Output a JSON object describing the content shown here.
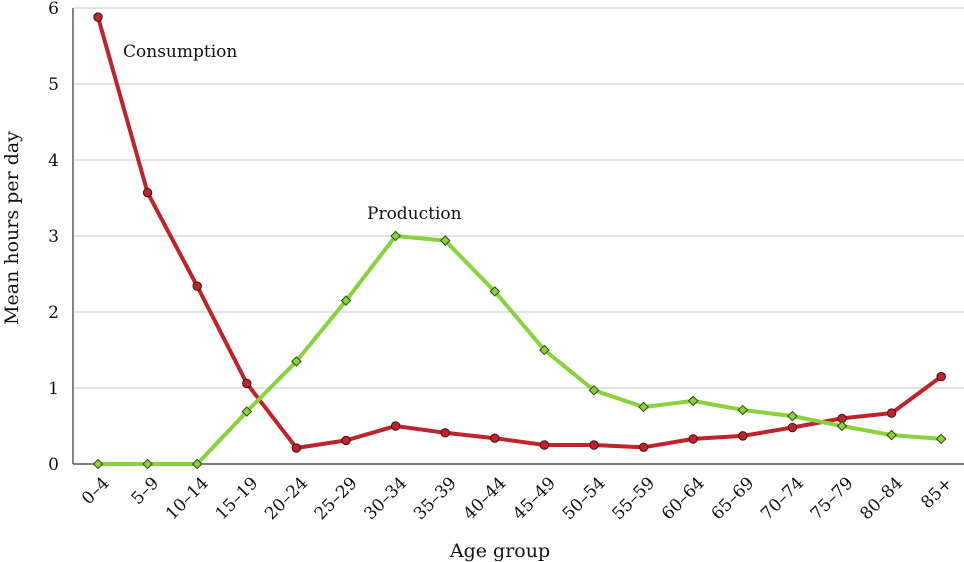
{
  "chart_data": {
    "type": "line",
    "title": "",
    "xlabel": "Age group",
    "ylabel": "Mean hours per day",
    "ylim": [
      0,
      6
    ],
    "yticks": [
      0,
      1,
      2,
      3,
      4,
      5,
      6
    ],
    "grid": "horizontal",
    "categories": [
      "0–4",
      "5–9",
      "10–14",
      "15–19",
      "20–24",
      "25–29",
      "30–34",
      "35–39",
      "40–44",
      "45–49",
      "50–54",
      "55–59",
      "60–64",
      "65–69",
      "70–74",
      "75–79",
      "80–84",
      "85+"
    ],
    "series": [
      {
        "name": "Consumption",
        "color": "#c0232b",
        "marker": "circle",
        "values": [
          5.88,
          3.57,
          2.34,
          1.06,
          0.21,
          0.31,
          0.5,
          0.41,
          0.34,
          0.25,
          0.25,
          0.22,
          0.33,
          0.37,
          0.48,
          0.6,
          0.67,
          1.15
        ]
      },
      {
        "name": "Production",
        "color": "#88d23c",
        "marker": "diamond",
        "values": [
          0.0,
          0.0,
          0.0,
          0.69,
          1.35,
          2.15,
          3.0,
          2.94,
          2.27,
          1.5,
          0.97,
          0.75,
          0.83,
          0.71,
          0.63,
          0.5,
          0.38,
          0.33
        ]
      }
    ]
  }
}
